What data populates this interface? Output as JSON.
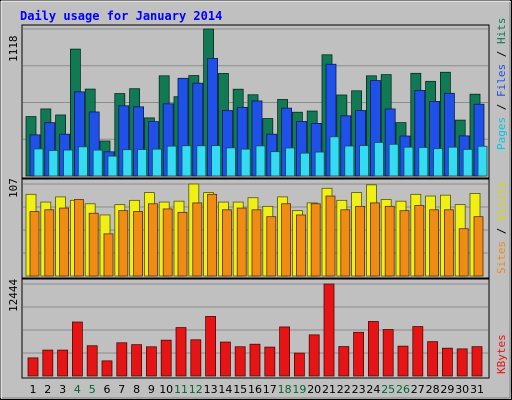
{
  "chart_data": {
    "type": "bar",
    "title": "Daily usage for January 2014",
    "days": [
      "1",
      "2",
      "3",
      "4",
      "5",
      "6",
      "7",
      "8",
      "9",
      "10",
      "11",
      "12",
      "13",
      "14",
      "15",
      "16",
      "17",
      "18",
      "19",
      "20",
      "21",
      "22",
      "23",
      "24",
      "25",
      "26",
      "27",
      "28",
      "29",
      "30",
      "31"
    ],
    "weekend_days": [
      "4",
      "5",
      "11",
      "12",
      "18",
      "19",
      "25",
      "26"
    ],
    "panels": [
      {
        "ymax_label": "1118",
        "ymax": 1118,
        "legend": [
          "Pages",
          "Files",
          "Hits"
        ],
        "series": [
          {
            "name": "Hits",
            "color": "#117a55",
            "values": [
              452,
              510,
              464,
              965,
              661,
              266,
              627,
              664,
              442,
              762,
              603,
              764,
              1118,
              780,
              660,
              618,
              437,
              582,
              485,
              494,
              922,
              616,
              648,
              762,
              771,
              406,
              781,
              720,
              789,
              425,
              622
            ]
          },
          {
            "name": "Files",
            "color": "#1f50e8",
            "values": [
              313,
              406,
              318,
              640,
              487,
              184,
              534,
              526,
              414,
              549,
              743,
              706,
              894,
              498,
              522,
              571,
              318,
              516,
              415,
              400,
              850,
              458,
              498,
              726,
              510,
              304,
              651,
              567,
              629,
              305,
              546
            ]
          },
          {
            "name": "Pages",
            "color": "#33dcf2",
            "values": [
              206,
              194,
              197,
              222,
              197,
              151,
              200,
              201,
              204,
              227,
              230,
              230,
              231,
              214,
              204,
              229,
              185,
              213,
              174,
              182,
              298,
              228,
              231,
              255,
              241,
              219,
              217,
              208,
              219,
              202,
              226
            ]
          }
        ]
      },
      {
        "ymax_label": "107",
        "ymax": 107,
        "legend": [
          "Sites",
          "Visits"
        ],
        "series": [
          {
            "name": "Visits",
            "color": "#f0f014",
            "values": [
              95,
              86,
              92,
              88,
              84,
              71,
              83,
              88,
              97,
              86,
              87,
              107,
              97,
              86,
              86,
              91,
              81,
              92,
              76,
              85,
              102,
              88,
              97,
              106,
              89,
              87,
              95,
              93,
              94,
              83,
              96
            ]
          },
          {
            "name": "Sites",
            "color": "#f08c14",
            "values": [
              75,
              77,
              79,
              89,
              73,
              49,
              76,
              75,
              84,
              78,
              74,
              85,
              95,
              77,
              79,
              77,
              69,
              84,
              71,
              84,
              93,
              77,
              81,
              85,
              81,
              76,
              82,
              77,
              77,
              55,
              69
            ]
          }
        ]
      },
      {
        "ymax_label": "12444",
        "ymax": 12444,
        "legend": [
          "KBytes"
        ],
        "series": [
          {
            "name": "KBytes",
            "color": "#e61414",
            "values": [
              2452,
              3504,
              3504,
              7300,
              4094,
              2048,
              4494,
              4241,
              3950,
              4846,
              6547,
              4901,
              8055,
              4590,
              3956,
              4299,
              3907,
              6633,
              3100,
              5564,
              12444,
              3983,
              5911,
              7377,
              6291,
              4035,
              6690,
              4646,
              3761,
              3669,
              3969
            ]
          }
        ]
      }
    ]
  },
  "colors": {
    "background": "#c0c0c0",
    "title": "#0000ff",
    "weekday_label": "#000000",
    "weekend_label": "#006633"
  }
}
